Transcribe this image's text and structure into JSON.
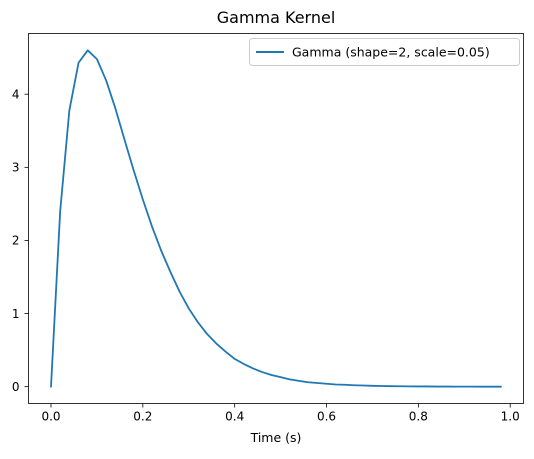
{
  "chart_data": {
    "type": "line",
    "title": "Gamma Kernel",
    "xlabel": "Time (s)",
    "ylabel": "",
    "xlim": [
      -0.049,
      1.029
    ],
    "ylim": [
      -0.23,
      4.83
    ],
    "xticks": [
      0.0,
      0.2,
      0.4,
      0.6,
      0.8,
      1.0
    ],
    "xtick_labels": [
      "0.0",
      "0.2",
      "0.4",
      "0.6",
      "0.8",
      "1.0"
    ],
    "yticks": [
      0,
      1,
      2,
      3,
      4
    ],
    "ytick_labels": [
      "0",
      "1",
      "2",
      "3",
      "4"
    ],
    "grid": false,
    "legend_position": "top-right",
    "series": [
      {
        "name": "Gamma (shape=2, scale=0.05)",
        "color": "#1f77b4",
        "x": [
          0.0,
          0.02,
          0.04,
          0.06,
          0.08,
          0.1,
          0.12,
          0.14,
          0.16,
          0.18,
          0.2,
          0.22,
          0.24,
          0.26,
          0.28,
          0.3,
          0.32,
          0.34,
          0.36,
          0.38,
          0.4,
          0.42,
          0.44,
          0.46,
          0.48,
          0.5,
          0.52,
          0.54,
          0.56,
          0.58,
          0.6,
          0.62,
          0.64,
          0.66,
          0.68,
          0.7,
          0.72,
          0.74,
          0.76,
          0.78,
          0.8,
          0.82,
          0.84,
          0.86,
          0.88,
          0.9,
          0.92,
          0.94,
          0.96,
          0.98
        ],
        "y": [
          0.0,
          2.4,
          3.78,
          4.43,
          4.6,
          4.48,
          4.19,
          3.81,
          3.38,
          2.96,
          2.56,
          2.19,
          1.86,
          1.57,
          1.3,
          1.07,
          0.88,
          0.72,
          0.59,
          0.48,
          0.38,
          0.31,
          0.25,
          0.2,
          0.16,
          0.13,
          0.1,
          0.08,
          0.06,
          0.05,
          0.04,
          0.03,
          0.026,
          0.02,
          0.016,
          0.012,
          0.009,
          0.007,
          0.006,
          0.004,
          0.003,
          0.003,
          0.002,
          0.002,
          0.001,
          0.001,
          0.001,
          0.0,
          0.0,
          0.0
        ]
      }
    ]
  }
}
